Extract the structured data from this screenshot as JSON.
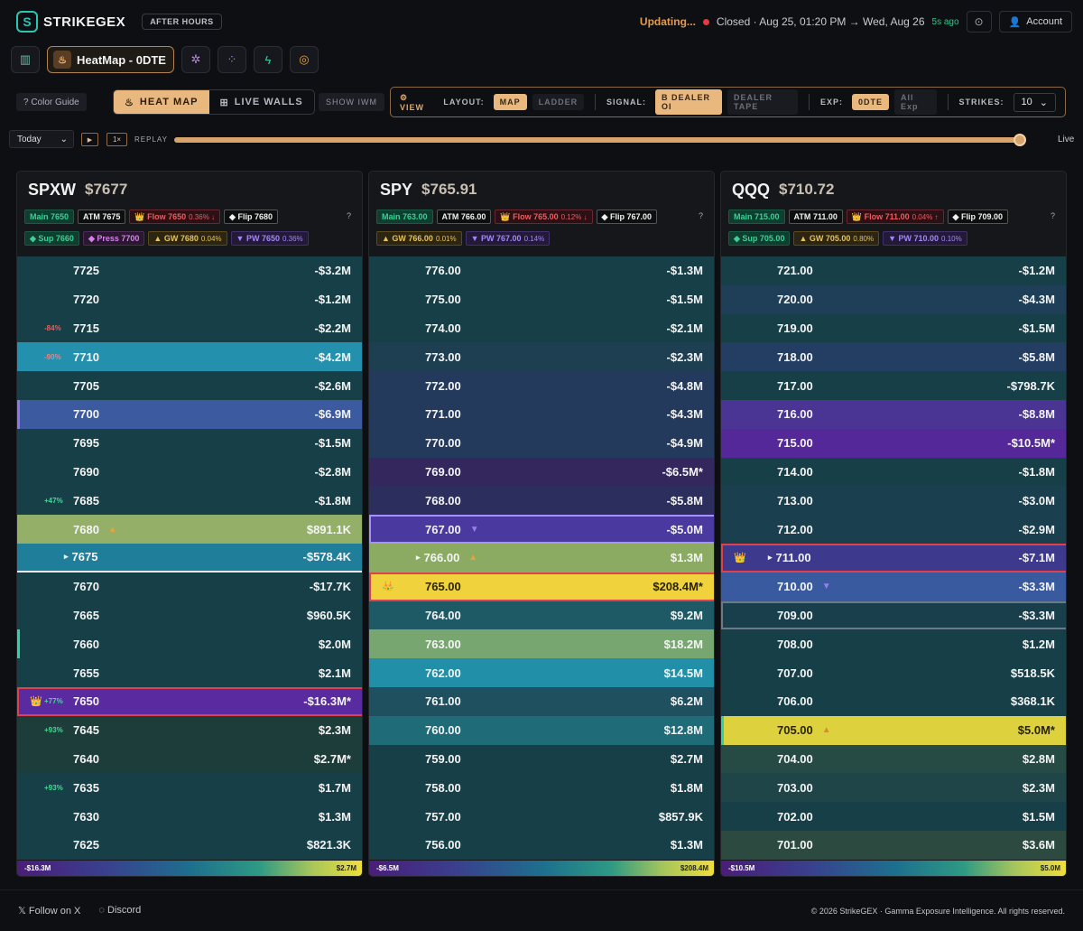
{
  "app": {
    "logo_text": "STRIKEGEX",
    "session_badge": "AFTER HOURS",
    "updating": "Updating...",
    "status": "Closed · Aug 25, 01:20 PM → Wed, Aug 26",
    "ago": "5s ago",
    "account": "Account"
  },
  "nav": {
    "active_tab": "HeatMap - 0DTE"
  },
  "controls": {
    "color_guide": "? Color Guide",
    "heat_map": "HEAT MAP",
    "live_walls": "LIVE WALLS",
    "show_iwm": "SHOW IWM",
    "view": "VIEW",
    "layout_label": "LAYOUT:",
    "layout_map": "MAP",
    "layout_ladder": "LADDER",
    "signal_label": "SIGNAL:",
    "signal_oi": "DEALER OI",
    "signal_tape": "DEALER TAPE",
    "exp_label": "EXP:",
    "exp_0dte": "0DTE",
    "exp_all": "All Exp",
    "strikes_label": "STRIKES:",
    "strikes_value": "10"
  },
  "replay": {
    "range": "Today",
    "speed": "1×",
    "label": "REPLAY",
    "live": "Live",
    "position": 0.99
  },
  "colors": {
    "teal_dark": "#173f47",
    "teal": "#1e5a66",
    "cyan": "#2390ad",
    "blue": "#2a4f84",
    "purple": "#54309a",
    "violet": "#5b3db0",
    "green": "#8bab62",
    "yellow": "#f0d33c"
  },
  "panels": [
    {
      "symbol": "SPXW",
      "price": "$7677",
      "chips_row1": [
        {
          "cls": "c-main",
          "text": "Main 7650"
        },
        {
          "cls": "c-atm",
          "text": "ATM 7675"
        },
        {
          "cls": "c-flow",
          "text": "👑 Flow 7650",
          "pct": "0.36% ↓"
        },
        {
          "cls": "c-flip",
          "text": "◆ Flip 7680"
        }
      ],
      "chips_row2": [
        {
          "cls": "c-sup",
          "text": "◆ Sup 7660"
        },
        {
          "cls": "c-press",
          "text": "◆ Press 7700"
        },
        {
          "cls": "c-gw",
          "text": "▲ GW 7680",
          "pct": "0.04%"
        },
        {
          "cls": "c-pw",
          "text": "▼ PW 7650",
          "pct": "0.36%"
        }
      ],
      "rows": [
        {
          "strike": "7725",
          "value": "-$3.2M",
          "color": "#173f47"
        },
        {
          "strike": "7720",
          "value": "-$1.2M",
          "color": "#173f47"
        },
        {
          "strike": "7715",
          "value": "-$2.2M",
          "color": "#173f47",
          "pct": "-84%",
          "pct_color": "#ef5b5b"
        },
        {
          "strike": "7710",
          "value": "-$4.2M",
          "color": "#2390ad",
          "pct": "-90%",
          "pct_color": "#ff7b7b"
        },
        {
          "strike": "7705",
          "value": "-$2.6M",
          "color": "#173f47"
        },
        {
          "strike": "7700",
          "value": "-$6.9M",
          "color": "#3c5aa0",
          "left": "#8f76e6"
        },
        {
          "strike": "7695",
          "value": "-$1.5M",
          "color": "#173f47"
        },
        {
          "strike": "7690",
          "value": "-$2.8M",
          "color": "#173f47"
        },
        {
          "strike": "7685",
          "value": "-$1.8M",
          "color": "#173f47",
          "pct": "+47%",
          "pct_color": "#3be08f"
        },
        {
          "strike": "7680",
          "value": "$891.1K",
          "color": "#94b068",
          "mark": "▲",
          "mark_color": "#e6a23c"
        },
        {
          "strike": "7675",
          "value": "-$578.4K",
          "color": "#1f7e9a",
          "caret": "▸",
          "underline": true
        },
        {
          "strike": "7670",
          "value": "-$17.7K",
          "color": "#173f47"
        },
        {
          "strike": "7665",
          "value": "$960.5K",
          "color": "#173f47"
        },
        {
          "strike": "7660",
          "value": "$2.0M",
          "color": "#173f47",
          "left": "#2fd2a0"
        },
        {
          "strike": "7655",
          "value": "$2.1M",
          "color": "#173f47"
        },
        {
          "strike": "7650",
          "value": "-$16.3M*",
          "color": "#5a2aa0",
          "pct": "+77%",
          "pct_color": "#3be08f",
          "crown": "👑",
          "border": "#e0414a"
        },
        {
          "strike": "7645",
          "value": "$2.3M",
          "color": "#1d3d3a",
          "pct": "+93%",
          "pct_color": "#3be08f"
        },
        {
          "strike": "7640",
          "value": "$2.7M*",
          "color": "#1d3d3a"
        },
        {
          "strike": "7635",
          "value": "$1.7M",
          "color": "#173f47",
          "pct": "+93%",
          "pct_color": "#3be08f"
        },
        {
          "strike": "7630",
          "value": "$1.3M",
          "color": "#173f47"
        },
        {
          "strike": "7625",
          "value": "$821.3K",
          "color": "#173f47"
        }
      ],
      "legend_min": "-$16.3M",
      "legend_max": "$2.7M"
    },
    {
      "symbol": "SPY",
      "price": "$765.91",
      "chips_row1": [
        {
          "cls": "c-main",
          "text": "Main 763.00"
        },
        {
          "cls": "c-atm",
          "text": "ATM 766.00"
        },
        {
          "cls": "c-flow",
          "text": "👑 Flow 765.00",
          "pct": "0.12% ↓"
        },
        {
          "cls": "c-flip",
          "text": "◆ Flip 767.00"
        }
      ],
      "chips_row2": [
        {
          "cls": "c-gw",
          "text": "▲ GW 766.00",
          "pct": "0.01%"
        },
        {
          "cls": "c-pw",
          "text": "▼ PW 767.00",
          "pct": "0.14%"
        }
      ],
      "rows": [
        {
          "strike": "776.00",
          "value": "-$1.3M",
          "color": "#173f47"
        },
        {
          "strike": "775.00",
          "value": "-$1.5M",
          "color": "#173f47"
        },
        {
          "strike": "774.00",
          "value": "-$2.1M",
          "color": "#173f47"
        },
        {
          "strike": "773.00",
          "value": "-$2.3M",
          "color": "#1e3f52"
        },
        {
          "strike": "772.00",
          "value": "-$4.8M",
          "color": "#243a5c"
        },
        {
          "strike": "771.00",
          "value": "-$4.3M",
          "color": "#243a5c"
        },
        {
          "strike": "770.00",
          "value": "-$4.9M",
          "color": "#243a5c"
        },
        {
          "strike": "769.00",
          "value": "-$6.5M*",
          "color": "#33275e"
        },
        {
          "strike": "768.00",
          "value": "-$5.8M",
          "color": "#2c2f5e"
        },
        {
          "strike": "767.00",
          "value": "-$5.0M",
          "color": "#4a3aa0",
          "mark": "▼",
          "mark_color": "#9a7cf0",
          "border": "#a890ff"
        },
        {
          "strike": "766.00",
          "value": "$1.3M",
          "color": "#8bab62",
          "caret": "▸",
          "mark": "▲",
          "mark_color": "#e6a23c"
        },
        {
          "strike": "765.00",
          "value": "$208.4M*",
          "color": "#f0d33c",
          "crown": "👑",
          "border": "#e0414a",
          "dark": true
        },
        {
          "strike": "764.00",
          "value": "$9.2M",
          "color": "#1e5a66"
        },
        {
          "strike": "763.00",
          "value": "$18.2M",
          "color": "#78a670"
        },
        {
          "strike": "762.00",
          "value": "$14.5M",
          "color": "#228fa8"
        },
        {
          "strike": "761.00",
          "value": "$6.2M",
          "color": "#1e5060"
        },
        {
          "strike": "760.00",
          "value": "$12.8M",
          "color": "#1f6b78"
        },
        {
          "strike": "759.00",
          "value": "$2.7M",
          "color": "#173f47"
        },
        {
          "strike": "758.00",
          "value": "$1.8M",
          "color": "#173f47"
        },
        {
          "strike": "757.00",
          "value": "$857.9K",
          "color": "#173f47"
        },
        {
          "strike": "756.00",
          "value": "$1.3M",
          "color": "#173f47"
        }
      ],
      "legend_min": "-$6.5M",
      "legend_max": "$208.4M"
    },
    {
      "symbol": "QQQ",
      "price": "$710.72",
      "chips_row1": [
        {
          "cls": "c-main",
          "text": "Main 715.00"
        },
        {
          "cls": "c-atm",
          "text": "ATM 711.00"
        },
        {
          "cls": "c-flow-up",
          "text": "👑 Flow 711.00",
          "pct": "0.04% ↑"
        },
        {
          "cls": "c-flip",
          "text": "◆ Flip 709.00"
        }
      ],
      "chips_row2": [
        {
          "cls": "c-sup",
          "text": "◆ Sup 705.00"
        },
        {
          "cls": "c-gw",
          "text": "▲ GW 705.00",
          "pct": "0.80%"
        },
        {
          "cls": "c-pw",
          "text": "▼ PW 710.00",
          "pct": "0.10%"
        }
      ],
      "rows": [
        {
          "strike": "721.00",
          "value": "-$1.2M",
          "color": "#173f47"
        },
        {
          "strike": "720.00",
          "value": "-$4.3M",
          "color": "#1f3f58"
        },
        {
          "strike": "719.00",
          "value": "-$1.5M",
          "color": "#173f47"
        },
        {
          "strike": "718.00",
          "value": "-$5.8M",
          "color": "#233e62"
        },
        {
          "strike": "717.00",
          "value": "-$798.7K",
          "color": "#173f47"
        },
        {
          "strike": "716.00",
          "value": "-$8.8M",
          "color": "#4a3494"
        },
        {
          "strike": "715.00",
          "value": "-$10.5M*",
          "color": "#55289a"
        },
        {
          "strike": "714.00",
          "value": "-$1.8M",
          "color": "#173f47"
        },
        {
          "strike": "713.00",
          "value": "-$3.0M",
          "color": "#1a4050"
        },
        {
          "strike": "712.00",
          "value": "-$2.9M",
          "color": "#1a4050"
        },
        {
          "strike": "711.00",
          "value": "-$7.1M",
          "color": "#3d3a8e",
          "caret": "▸",
          "crown": "👑",
          "border": "#e0414a"
        },
        {
          "strike": "710.00",
          "value": "-$3.3M",
          "color": "#3a5aa0",
          "mark": "▼",
          "mark_color": "#9a7cf0"
        },
        {
          "strike": "709.00",
          "value": "-$3.3M",
          "color": "#1a3f4c",
          "border": "#6c7a86"
        },
        {
          "strike": "708.00",
          "value": "$1.2M",
          "color": "#173f47"
        },
        {
          "strike": "707.00",
          "value": "$518.5K",
          "color": "#173f47"
        },
        {
          "strike": "706.00",
          "value": "$368.1K",
          "color": "#173f47"
        },
        {
          "strike": "705.00",
          "value": "$5.0M*",
          "color": "#ddd23e",
          "mark": "▲",
          "mark_color": "#d0902c",
          "left": "#2fd2a0",
          "dark": true
        },
        {
          "strike": "704.00",
          "value": "$2.8M",
          "color": "#264b45"
        },
        {
          "strike": "703.00",
          "value": "$2.3M",
          "color": "#1f4548"
        },
        {
          "strike": "702.00",
          "value": "$1.5M",
          "color": "#173f47"
        },
        {
          "strike": "701.00",
          "value": "$3.6M",
          "color": "#2c4a40"
        }
      ],
      "legend_min": "-$10.5M",
      "legend_max": "$5.0M"
    }
  ],
  "footer": {
    "follow_x": "Follow on X",
    "discord": "Discord",
    "copyright": "© 2026 StrikeGEX · Gamma Exposure Intelligence. All rights reserved."
  }
}
